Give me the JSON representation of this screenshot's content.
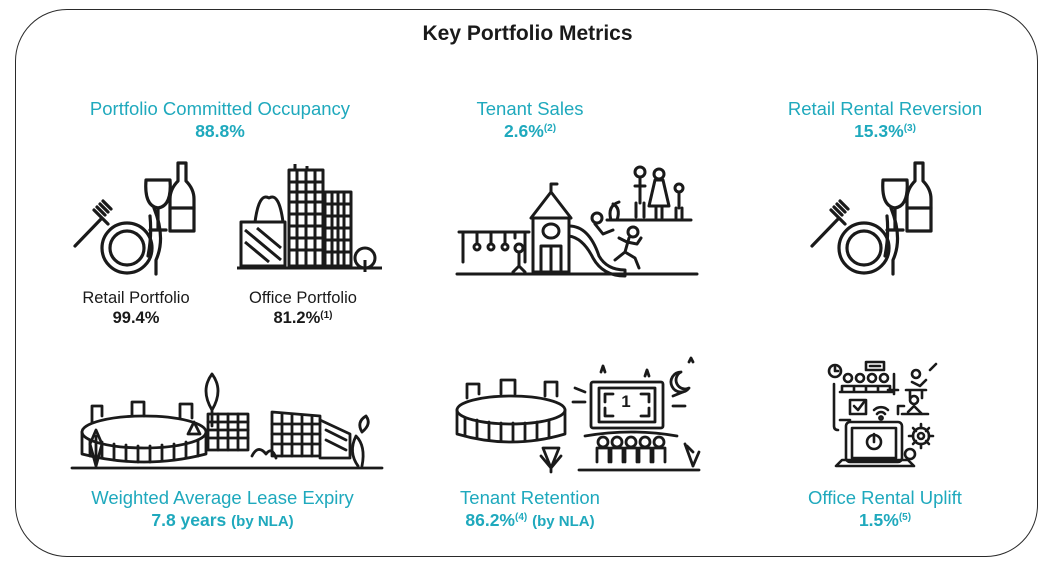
{
  "title": "Key Portfolio Metrics",
  "metrics": {
    "occupancy": {
      "label": "Portfolio Committed Occupancy",
      "value": "88.8%"
    },
    "tenant_sales": {
      "label": "Tenant Sales",
      "value": "2.6%",
      "footnote": "(2)"
    },
    "rental_reversion": {
      "label": "Retail Rental Reversion",
      "value": "15.3%",
      "footnote": "(3)"
    },
    "wale": {
      "label": "Weighted Average Lease Expiry",
      "value": "7.8 years",
      "note": "(by NLA)"
    },
    "retention": {
      "label": "Tenant Retention",
      "value": "86.2%",
      "footnote": "(4)",
      "note": "(by NLA)"
    },
    "office_uplift": {
      "label": "Office Rental Uplift",
      "value": "1.5%",
      "footnote": "(5)"
    }
  },
  "sub_metrics": {
    "retail": {
      "label": "Retail Portfolio",
      "value": "99.4%"
    },
    "office": {
      "label": "Office Portfolio",
      "value": "81.2%",
      "footnote": "(1)"
    }
  },
  "screen_text": {
    "screen": "1"
  },
  "icons": [
    "dining-icon",
    "office-buildings-icon",
    "playground-family-icon",
    "dining-icon",
    "stadium-mall-icon",
    "stadium-cinema-icon",
    "office-workspace-icon"
  ],
  "colors": {
    "accent": "#1fa9bd",
    "text": "#1a1a1a",
    "border": "#2a2a2a"
  }
}
